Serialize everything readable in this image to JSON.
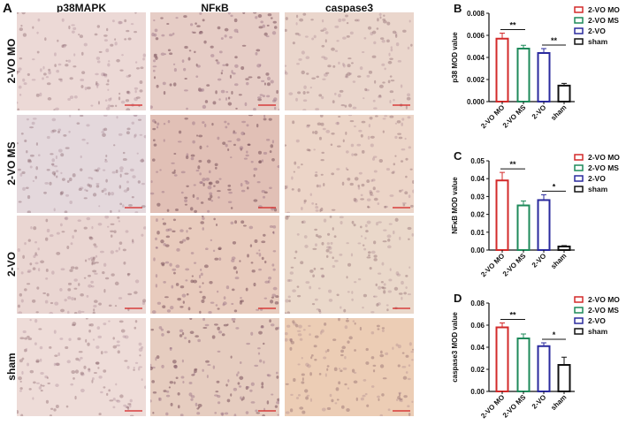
{
  "panel_a": {
    "letter": "A",
    "columns": [
      "p38MAPK",
      "NFκB",
      "caspase3"
    ],
    "rows": [
      "2-VO MO",
      "2-VO MS",
      "2-VO",
      "sham"
    ],
    "scale_bar_color": "#d42020"
  },
  "chart_data": [
    {
      "panel": "B",
      "type": "bar",
      "categories": [
        "2-VO MO",
        "2-VO MS",
        "2-VO",
        "sham"
      ],
      "values": [
        0.0057,
        0.0048,
        0.0044,
        0.00145
      ],
      "errors": [
        0.0005,
        0.0003,
        0.0004,
        0.0002
      ],
      "ylabel": "p38 MOD value",
      "ylim": [
        0,
        0.008
      ],
      "yticks": [
        "0.000",
        "0.002",
        "0.004",
        "0.006",
        "0.008"
      ],
      "significance": [
        {
          "between": [
            0,
            1
          ],
          "label": "**"
        },
        {
          "between": [
            2,
            3
          ],
          "label": "**"
        }
      ],
      "legend": [
        "2-VO MO",
        "2-VO MS",
        "2-VO",
        "sham"
      ],
      "legend_placement": "top-right",
      "colors": [
        "#d32a2a",
        "#1e8a5a",
        "#2a2a9e",
        "#111111"
      ]
    },
    {
      "panel": "C",
      "type": "bar",
      "categories": [
        "2-VO MO",
        "2-VO MS",
        "2-VO",
        "sham"
      ],
      "values": [
        0.039,
        0.025,
        0.028,
        0.002
      ],
      "errors": [
        0.0045,
        0.0025,
        0.003,
        0.0005
      ],
      "ylabel": "NFκB MOD value",
      "ylim": [
        0,
        0.05
      ],
      "yticks": [
        "0.00",
        "0.01",
        "0.02",
        "0.03",
        "0.04",
        "0.05"
      ],
      "significance": [
        {
          "between": [
            0,
            1
          ],
          "label": "**"
        },
        {
          "between": [
            2,
            3
          ],
          "label": "*"
        }
      ],
      "legend": [
        "2-VO MO",
        "2-VO MS",
        "2-VO",
        "sham"
      ],
      "legend_placement": "top-right",
      "colors": [
        "#d32a2a",
        "#1e8a5a",
        "#2a2a9e",
        "#111111"
      ]
    },
    {
      "panel": "D",
      "type": "bar",
      "categories": [
        "2-VO MO",
        "2-VO MS",
        "2-VO",
        "sham"
      ],
      "values": [
        0.058,
        0.048,
        0.041,
        0.024
      ],
      "errors": [
        0.004,
        0.004,
        0.003,
        0.007
      ],
      "ylabel": "caspase3 MOD value",
      "ylim": [
        0,
        0.08
      ],
      "yticks": [
        "0.00",
        "0.02",
        "0.04",
        "0.06",
        "0.08"
      ],
      "significance": [
        {
          "between": [
            0,
            1
          ],
          "label": "**"
        },
        {
          "between": [
            2,
            3
          ],
          "label": "*"
        }
      ],
      "legend": [
        "2-VO MO",
        "2-VO MS",
        "2-VO",
        "sham"
      ],
      "legend_placement": "top-right",
      "colors": [
        "#d32a2a",
        "#1e8a5a",
        "#2a2a9e",
        "#111111"
      ]
    }
  ]
}
